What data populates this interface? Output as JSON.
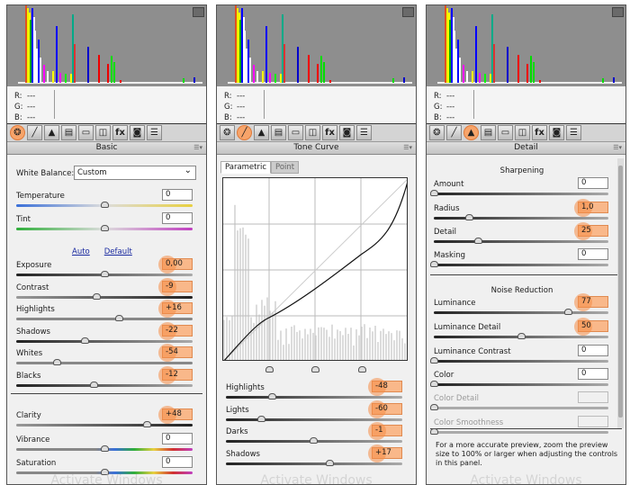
{
  "readout": {
    "r_label": "R:",
    "g_label": "G:",
    "b_label": "B:",
    "r": "---",
    "g": "---",
    "b": "---"
  },
  "toolbar_icons": [
    "basic-icon",
    "tone-curve-icon",
    "detail-icon",
    "hsl-icon",
    "split-toning-icon",
    "lens-corrections-icon",
    "effects-icon",
    "camera-calibration-icon",
    "presets-icon"
  ],
  "toolbar_glyphs": [
    "❂",
    "╱",
    "▲",
    "▤",
    "▭",
    "◫",
    "fx",
    "◙",
    "☰"
  ],
  "highlight_color": "#f5905a",
  "watermark": "Activate Windows",
  "basic": {
    "title": "Basic",
    "active_tab": 0,
    "white_balance_label": "White Balance:",
    "white_balance_value": "Custom",
    "auto": "Auto",
    "default": "Default",
    "sliders": [
      {
        "label": "Temperature",
        "value": "0",
        "pos": 0.5,
        "track": "temp"
      },
      {
        "label": "Tint",
        "value": "0",
        "pos": 0.5,
        "track": "tint"
      },
      {
        "label": "Exposure",
        "value": "0,00",
        "pos": 0.5,
        "hl": true
      },
      {
        "label": "Contrast",
        "value": "-9",
        "pos": 0.455,
        "hl": true,
        "track": "contrast"
      },
      {
        "label": "Highlights",
        "value": "+16",
        "pos": 0.58,
        "hl": true,
        "track": "grey"
      },
      {
        "label": "Shadows",
        "value": "-22",
        "pos": 0.39,
        "hl": true
      },
      {
        "label": "Whites",
        "value": "-54",
        "pos": 0.23,
        "hl": true,
        "track": "grey"
      },
      {
        "label": "Blacks",
        "value": "-12",
        "pos": 0.44,
        "hl": true
      },
      {
        "label": "Clarity",
        "value": "+48",
        "pos": 0.74,
        "hl": true,
        "track": "contrast"
      },
      {
        "label": "Vibrance",
        "value": "0",
        "pos": 0.5,
        "track": "sat"
      },
      {
        "label": "Saturation",
        "value": "0",
        "pos": 0.5,
        "track": "sat"
      }
    ]
  },
  "tone_curve": {
    "title": "Tone Curve",
    "active_tab": 1,
    "tabs": [
      "Parametric",
      "Point"
    ],
    "split_points": [
      0.25,
      0.5,
      0.75
    ],
    "sliders": [
      {
        "label": "Highlights",
        "value": "-48",
        "pos": 0.26,
        "hl": true
      },
      {
        "label": "Lights",
        "value": "-60",
        "pos": 0.2,
        "hl": true
      },
      {
        "label": "Darks",
        "value": "-1",
        "pos": 0.495,
        "hl": true
      },
      {
        "label": "Shadows",
        "value": "+17",
        "pos": 0.585,
        "hl": true
      }
    ]
  },
  "detail": {
    "title": "Detail",
    "active_tab": 2,
    "sharpening": "Sharpening",
    "noise_reduction": "Noise Reduction",
    "sliders": [
      {
        "label": "Amount",
        "value": "0",
        "pos": 0
      },
      {
        "label": "Radius",
        "value": "1,0",
        "pos": 0.2,
        "hl": true
      },
      {
        "label": "Detail",
        "value": "25",
        "pos": 0.25,
        "hl": true
      },
      {
        "label": "Masking",
        "value": "0",
        "pos": 0
      },
      {
        "label": "Luminance",
        "value": "77",
        "pos": 0.77,
        "hl": true
      },
      {
        "label": "Luminance Detail",
        "value": "50",
        "pos": 0.5,
        "hl": true
      },
      {
        "label": "Luminance Contrast",
        "value": "0",
        "pos": 0
      },
      {
        "label": "Color",
        "value": "0",
        "pos": 0
      },
      {
        "label": "Color Detail",
        "value": "",
        "pos": 0,
        "disabled": true
      },
      {
        "label": "Color Smoothness",
        "value": "",
        "pos": 0,
        "disabled": true
      }
    ],
    "note": "For a more accurate preview, zoom the preview size to 100% or larger when adjusting the controls in this panel."
  }
}
